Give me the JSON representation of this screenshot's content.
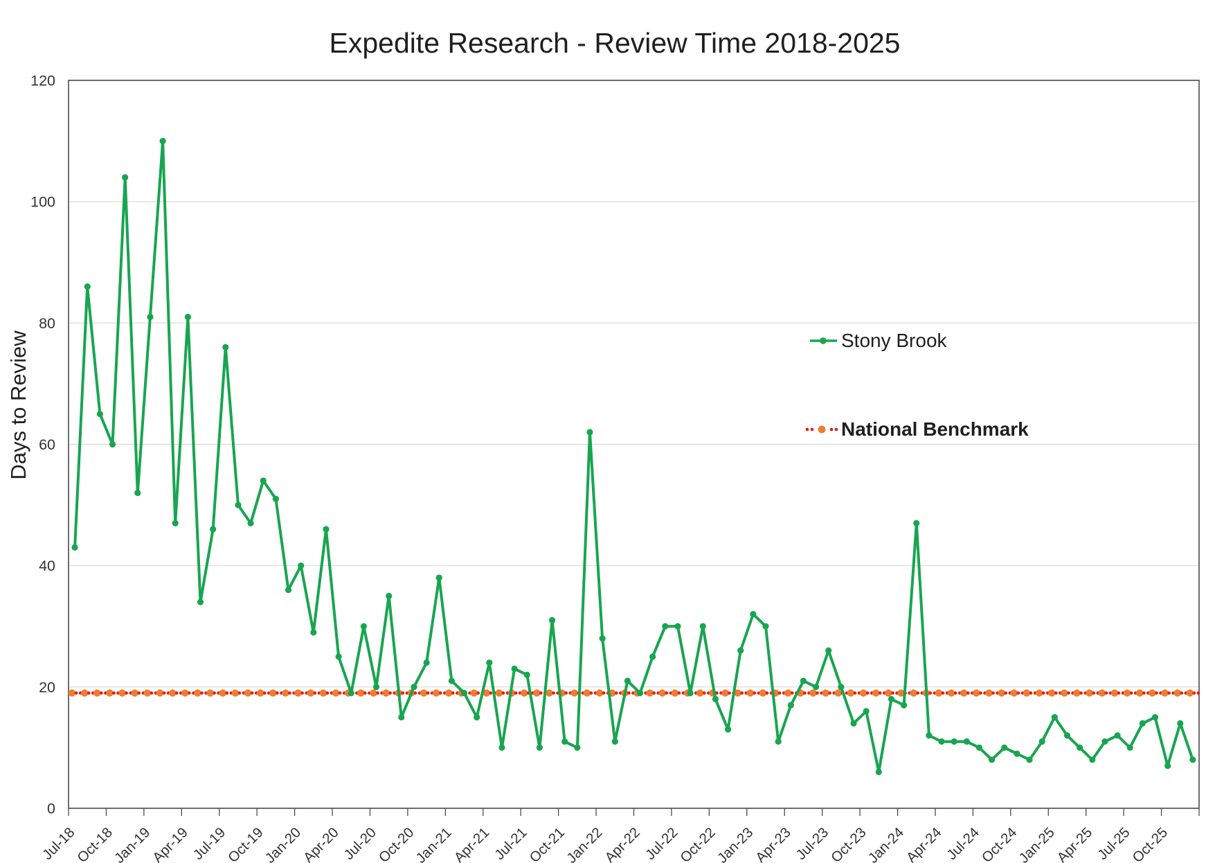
{
  "title": "Expedite Research - Review Time 2018-2025",
  "y_axis": {
    "title": "Days to Review",
    "tick_values": [
      0,
      20,
      40,
      60,
      80,
      100,
      120
    ],
    "min": 0,
    "max": 120
  },
  "legend": {
    "series1_label": "Stony Brook",
    "series2_label": "National Benchmark"
  },
  "colors": {
    "series_line": "#18A550",
    "benchmark_small_dot": "#E8190F",
    "benchmark_large_dot": "#ED7D31",
    "gridline": "#D9D9D9",
    "axis": "#4A4A4A",
    "text_dark": "#1F1F1F",
    "tick_text": "#333333"
  },
  "chart_data": {
    "type": "line",
    "title": "Expedite Research - Review Time 2018-2025",
    "xlabel": "",
    "ylabel": "Days to Review",
    "ylim": [
      0,
      120
    ],
    "grid": "horizontal",
    "legend_position": "middle-right",
    "x_interval": "monthly",
    "x_start": "Jul-2018",
    "x_end": "Dec-2025",
    "x_tick_labels": [
      "Jul-18",
      "Oct-18",
      "Jan-19",
      "Apr-19",
      "Jul-19",
      "Oct-19",
      "Jan-20",
      "Apr-20",
      "Jul-20",
      "Oct-20",
      "Jan-21",
      "Apr-21",
      "Jul-21",
      "Oct-21",
      "Jan-22",
      "Apr-22",
      "Jul-22",
      "Oct-22",
      "Jan-23",
      "Apr-23",
      "Jul-23",
      "Oct-23",
      "Jan-24",
      "Apr-24",
      "Jul-24",
      "Oct-24",
      "Jan-25",
      "Apr-25",
      "Jul-25",
      "Oct-25"
    ],
    "series": [
      {
        "name": "Stony Brook",
        "type": "line-with-markers",
        "values": [
          43,
          86,
          65,
          60,
          104,
          52,
          81,
          110,
          47,
          81,
          34,
          46,
          76,
          50,
          47,
          54,
          51,
          36,
          40,
          29,
          46,
          25,
          19,
          30,
          20,
          35,
          15,
          20,
          24,
          38,
          21,
          19,
          15,
          24,
          10,
          23,
          22,
          10,
          31,
          11,
          10,
          62,
          28,
          11,
          21,
          19,
          25,
          30,
          30,
          19,
          30,
          18,
          13,
          26,
          32,
          30,
          11,
          17,
          21,
          20,
          26,
          20,
          14,
          16,
          6,
          18,
          17,
          47,
          12,
          11,
          11,
          11,
          10,
          8,
          10,
          9,
          8,
          11,
          15,
          12,
          10,
          8,
          11,
          12,
          10,
          14,
          15,
          7,
          14,
          8
        ]
      },
      {
        "name": "National Benchmark",
        "type": "dotted-constant-line",
        "constant_value": 19
      }
    ]
  }
}
